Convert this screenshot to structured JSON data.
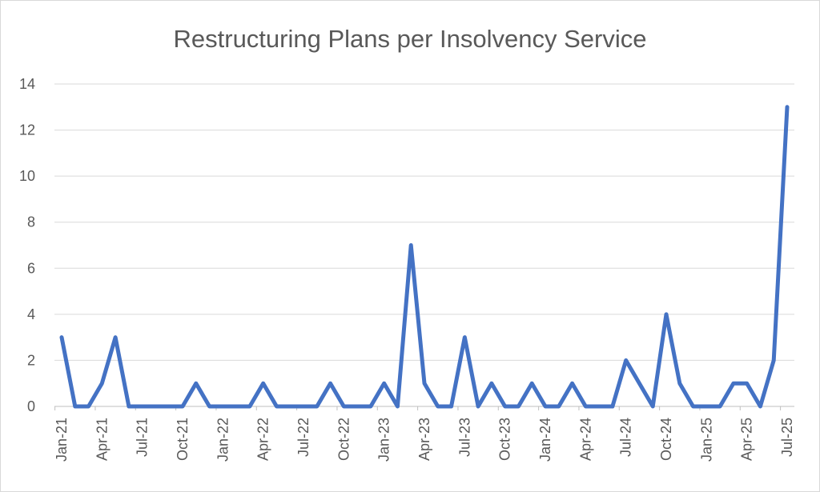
{
  "chart_data": {
    "type": "line",
    "title": "Restructuring Plans per Insolvency Service",
    "xlabel": "",
    "ylabel": "",
    "ylim": [
      0,
      14
    ],
    "yticks": [
      0,
      2,
      4,
      6,
      8,
      10,
      12,
      14
    ],
    "grid": true,
    "legend": "none",
    "color": "#4472c4",
    "x_tick_labels": [
      "Jan-21",
      "Apr-21",
      "Jul-21",
      "Oct-21",
      "Jan-22",
      "Apr-22",
      "Jul-22",
      "Oct-22",
      "Jan-23",
      "Apr-23",
      "Jul-23",
      "Oct-23",
      "Jan-24",
      "Apr-24",
      "Jul-24",
      "Oct-24",
      "Jan-25",
      "Apr-25",
      "Jul-25"
    ],
    "x": [
      "Jan-21",
      "Feb-21",
      "Mar-21",
      "Apr-21",
      "May-21",
      "Jun-21",
      "Jul-21",
      "Aug-21",
      "Sep-21",
      "Oct-21",
      "Nov-21",
      "Dec-21",
      "Jan-22",
      "Feb-22",
      "Mar-22",
      "Apr-22",
      "May-22",
      "Jun-22",
      "Jul-22",
      "Aug-22",
      "Sep-22",
      "Oct-22",
      "Nov-22",
      "Dec-22",
      "Jan-23",
      "Feb-23",
      "Mar-23",
      "Apr-23",
      "May-23",
      "Jun-23",
      "Jul-23",
      "Aug-23",
      "Sep-23",
      "Oct-23",
      "Nov-23",
      "Dec-23",
      "Jan-24",
      "Feb-24",
      "Mar-24",
      "Apr-24",
      "May-24",
      "Jun-24",
      "Jul-24",
      "Aug-24",
      "Sep-24",
      "Oct-24",
      "Nov-24",
      "Dec-24",
      "Jan-25",
      "Feb-25",
      "Mar-25",
      "Apr-25",
      "May-25",
      "Jun-25",
      "Jul-25"
    ],
    "series": [
      {
        "values": [
          3,
          0,
          0,
          1,
          3,
          0,
          0,
          0,
          0,
          0,
          1,
          0,
          0,
          0,
          0,
          1,
          0,
          0,
          0,
          0,
          1,
          0,
          0,
          0,
          1,
          0,
          7,
          1,
          0,
          0,
          3,
          0,
          1,
          0,
          0,
          1,
          0,
          0,
          1,
          0,
          0,
          0,
          2,
          1,
          0,
          4,
          1,
          0,
          0,
          0,
          1,
          1,
          0,
          2,
          13
        ]
      }
    ]
  }
}
